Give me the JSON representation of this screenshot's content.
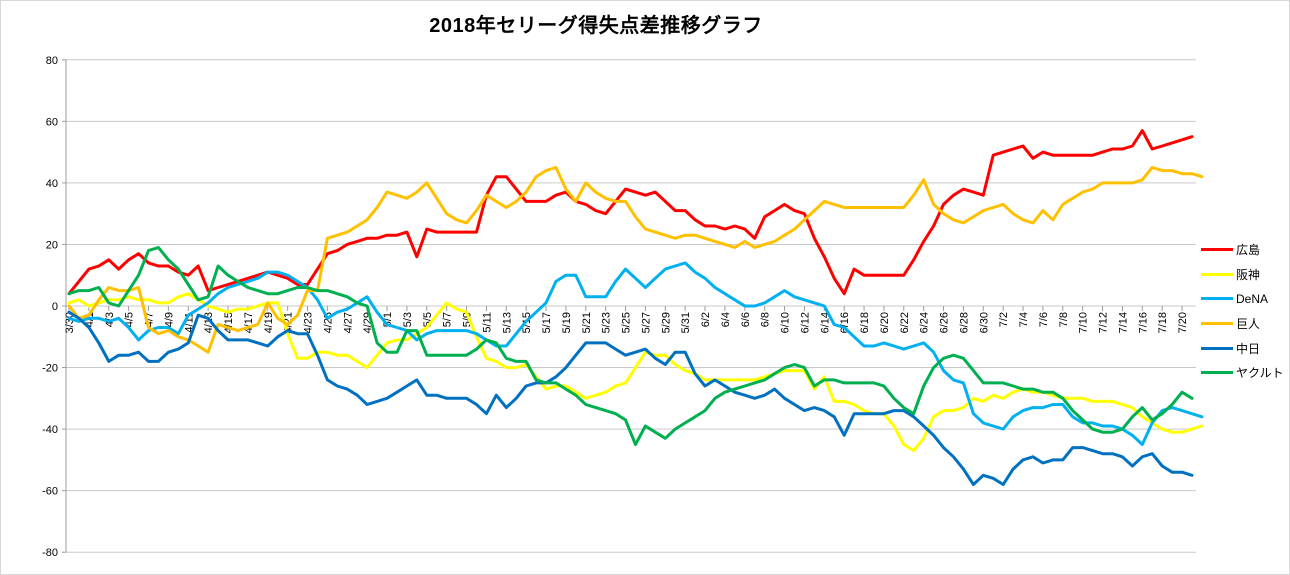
{
  "page": {
    "background": "#FFFFFF",
    "border_color": "#D7D7D7"
  },
  "chart_data": {
    "type": "line",
    "title": "2018年セリーグ得失点差推移グラフ",
    "xlabel": "",
    "ylabel": "",
    "ylim": [
      -80,
      80
    ],
    "y_ticks": [
      80,
      60,
      40,
      20,
      0,
      -20,
      -40,
      -60,
      -80
    ],
    "x_tick_labels": [
      "3/30",
      "4/1",
      "4/3",
      "4/5",
      "4/7",
      "4/9",
      "4/11",
      "4/13",
      "4/15",
      "4/17",
      "4/19",
      "4/21",
      "4/23",
      "4/25",
      "4/27",
      "4/29",
      "5/1",
      "5/3",
      "5/5",
      "5/7",
      "5/9",
      "5/11",
      "5/13",
      "5/15",
      "5/17",
      "5/19",
      "5/21",
      "5/23",
      "5/25",
      "5/27",
      "5/29",
      "5/31",
      "6/2",
      "6/4",
      "6/6",
      "6/8",
      "6/10",
      "6/12",
      "6/14",
      "6/16",
      "6/18",
      "6/20",
      "6/22",
      "6/24",
      "6/26",
      "6/28",
      "6/30",
      "7/2",
      "7/4",
      "7/6",
      "7/8",
      "7/10",
      "7/12",
      "7/14",
      "7/16",
      "7/18",
      "7/20"
    ],
    "x_label_every_days": 2,
    "x_total_points": 114,
    "grid": true,
    "legend_position": "right",
    "grid_color": "#C9C9C9",
    "axis_color": "#9C9C9C",
    "text_color": "#000000",
    "series": [
      {
        "name": "広島",
        "color": "#FF0000",
        "values": [
          4,
          8,
          12,
          13,
          15,
          12,
          15,
          17,
          14,
          13,
          13,
          11,
          10,
          13,
          5,
          6,
          7,
          8,
          9,
          10,
          11,
          10,
          9,
          7,
          7,
          12,
          17,
          18,
          20,
          21,
          22,
          22,
          23,
          23,
          24,
          16,
          25,
          24,
          24,
          24,
          24,
          24,
          36,
          42,
          42,
          38,
          34,
          34,
          34,
          36,
          37,
          34,
          33,
          31,
          30,
          34,
          38,
          37,
          36,
          37,
          34,
          31,
          31,
          28,
          26,
          26,
          25,
          26,
          25,
          22,
          29,
          31,
          33,
          31,
          30,
          22,
          16,
          9,
          4,
          12,
          10,
          10,
          10,
          10,
          10,
          15,
          21,
          26,
          33,
          36,
          38,
          37,
          36,
          49,
          50,
          51,
          52,
          48,
          50,
          49,
          49,
          49,
          49,
          49,
          50,
          51,
          51,
          52,
          57,
          51,
          52,
          53,
          54,
          55
        ]
      },
      {
        "name": "阪神",
        "color": "#FFFF00",
        "values": [
          1,
          2,
          0,
          1,
          2,
          2,
          3,
          2,
          2,
          1,
          1,
          3,
          4,
          2,
          0,
          -1,
          -2,
          -1,
          -1,
          0,
          1,
          1,
          -9,
          -17,
          -17,
          -15,
          -15,
          -16,
          -16,
          -18,
          -20,
          -16,
          -12,
          -11,
          -11,
          -9,
          -7,
          -3,
          1,
          -1,
          -2,
          -10,
          -17,
          -18,
          -20,
          -20,
          -19,
          -23,
          -27,
          -26,
          -26,
          -28,
          -30,
          -29,
          -28,
          -26,
          -25,
          -20,
          -15,
          -16,
          -16,
          -19,
          -21,
          -22,
          -24,
          -24,
          -24,
          -24,
          -24,
          -24,
          -23,
          -22,
          -21,
          -21,
          -21,
          -27,
          -23,
          -31,
          -31,
          -32,
          -34,
          -35,
          -35,
          -39,
          -45,
          -47,
          -43,
          -36,
          -34,
          -34,
          -33,
          -30,
          -31,
          -29,
          -30,
          -28,
          -27,
          -28,
          -28,
          -29,
          -30,
          -30,
          -30,
          -31,
          -31,
          -31,
          -32,
          -33,
          -36,
          -38,
          -40,
          -41,
          -41,
          -40,
          -39
        ]
      },
      {
        "name": "DeNA",
        "color": "#00B0F0",
        "values": [
          -4,
          -5,
          -4,
          -4,
          -5,
          -4,
          -7,
          -11,
          -8,
          -7,
          -7,
          -9,
          -3,
          -1,
          1,
          4,
          6,
          7,
          8,
          9,
          11,
          11,
          10,
          8,
          6,
          2,
          -4,
          -2,
          -1,
          1,
          3,
          -2,
          -6,
          -7,
          -8,
          -11,
          -9,
          -8,
          -8,
          -8,
          -8,
          -9,
          -11,
          -13,
          -13,
          -9,
          -5,
          -2,
          1,
          8,
          10,
          10,
          3,
          3,
          3,
          8,
          12,
          9,
          6,
          9,
          12,
          13,
          14,
          11,
          9,
          6,
          4,
          2,
          0,
          0,
          1,
          3,
          5,
          3,
          2,
          1,
          0,
          -6,
          -7,
          -10,
          -13,
          -13,
          -12,
          -13,
          -14,
          -13,
          -12,
          -15,
          -21,
          -24,
          -25,
          -35,
          -38,
          -39,
          -40,
          -36,
          -34,
          -33,
          -33,
          -32,
          -32,
          -36,
          -38,
          -38,
          -39,
          -39,
          -40,
          -42,
          -45,
          -38,
          -34,
          -33,
          -34,
          -35,
          -36
        ]
      },
      {
        "name": "巨人",
        "color": "#FFC000",
        "values": [
          0,
          -4,
          -3,
          2,
          6,
          5,
          5,
          6,
          -7,
          -9,
          -8,
          -10,
          -11,
          -13,
          -15,
          -6,
          -7,
          -8,
          -7,
          -6,
          1,
          -4,
          -6,
          -3,
          5,
          5,
          22,
          23,
          24,
          26,
          28,
          32,
          37,
          36,
          35,
          37,
          40,
          35,
          30,
          28,
          27,
          31,
          36,
          34,
          32,
          34,
          37,
          42,
          44,
          45,
          38,
          34,
          40,
          37,
          35,
          34,
          34,
          29,
          25,
          24,
          23,
          22,
          23,
          23,
          22,
          21,
          20,
          19,
          21,
          19,
          20,
          21,
          23,
          25,
          28,
          31,
          34,
          33,
          32,
          32,
          32,
          32,
          32,
          32,
          32,
          36,
          41,
          33,
          30,
          28,
          27,
          29,
          31,
          32,
          33,
          30,
          28,
          27,
          31,
          28,
          33,
          35,
          37,
          38,
          40,
          40,
          40,
          40,
          41,
          45,
          44,
          44,
          43,
          43,
          42
        ]
      },
      {
        "name": "中日",
        "color": "#0070C0",
        "values": [
          -2,
          -4,
          -7,
          -12,
          -18,
          -16,
          -16,
          -15,
          -18,
          -18,
          -15,
          -14,
          -12,
          -3,
          -4,
          -8,
          -11,
          -11,
          -11,
          -12,
          -13,
          -10,
          -8,
          -9,
          -9,
          -16,
          -24,
          -26,
          -27,
          -29,
          -32,
          -31,
          -30,
          -28,
          -26,
          -24,
          -29,
          -29,
          -30,
          -30,
          -30,
          -32,
          -35,
          -29,
          -33,
          -30,
          -26,
          -25,
          -25,
          -23,
          -20,
          -16,
          -12,
          -12,
          -12,
          -14,
          -16,
          -15,
          -14,
          -17,
          -19,
          -15,
          -15,
          -22,
          -26,
          -24,
          -26,
          -28,
          -29,
          -30,
          -29,
          -27,
          -30,
          -32,
          -34,
          -33,
          -34,
          -36,
          -42,
          -35,
          -35,
          -35,
          -35,
          -34,
          -34,
          -36,
          -39,
          -42,
          -46,
          -49,
          -53,
          -58,
          -55,
          -56,
          -58,
          -53,
          -50,
          -49,
          -51,
          -50,
          -50,
          -46,
          -46,
          -47,
          -48,
          -48,
          -49,
          -52,
          -49,
          -48,
          -52,
          -54,
          -54,
          -55
        ]
      },
      {
        "name": "ヤクルト",
        "color": "#00B050",
        "values": [
          4,
          5,
          5,
          6,
          1,
          0,
          5,
          10,
          18,
          19,
          15,
          12,
          7,
          2,
          3,
          13,
          10,
          8,
          6,
          5,
          4,
          4,
          5,
          6,
          6,
          5,
          5,
          4,
          3,
          1,
          0,
          -12,
          -15,
          -15,
          -8,
          -8,
          -16,
          -16,
          -16,
          -16,
          -16,
          -14,
          -11,
          -12,
          -17,
          -18,
          -18,
          -24,
          -25,
          -25,
          -27,
          -29,
          -32,
          -33,
          -34,
          -35,
          -37,
          -45,
          -39,
          -41,
          -43,
          -40,
          -38,
          -36,
          -34,
          -30,
          -28,
          -27,
          -26,
          -25,
          -24,
          -22,
          -20,
          -19,
          -20,
          -26,
          -24,
          -24,
          -25,
          -25,
          -25,
          -25,
          -26,
          -30,
          -33,
          -35,
          -26,
          -20,
          -17,
          -16,
          -17,
          -21,
          -25,
          -25,
          -25,
          -26,
          -27,
          -27,
          -28,
          -28,
          -30,
          -34,
          -37,
          -40,
          -41,
          -41,
          -40,
          -36,
          -33,
          -37,
          -35,
          -32,
          -28,
          -30
        ]
      }
    ]
  }
}
